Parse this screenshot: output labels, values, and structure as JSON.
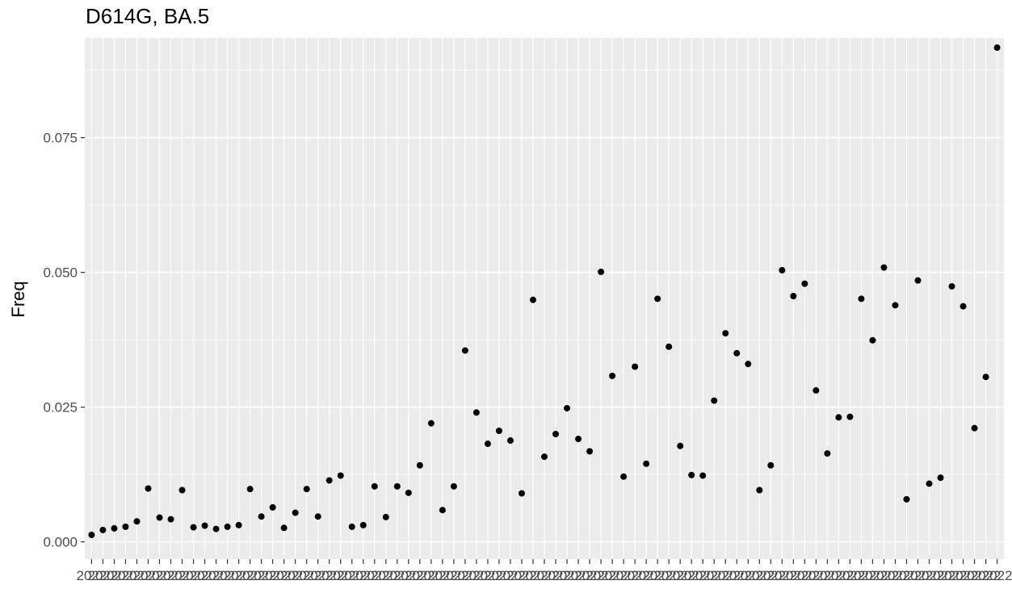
{
  "chart_data": {
    "type": "scatter",
    "title": "D614G, BA.5",
    "xlabel": "",
    "ylabel": "Freq",
    "x_tick_text": "2022",
    "ylim": [
      -0.0032,
      0.0935
    ],
    "y_ticks": [
      0.0,
      0.025,
      0.05,
      0.075
    ],
    "y_tick_labels": [
      "0.000",
      "0.025",
      "0.050",
      "0.075"
    ],
    "grid": true,
    "panel_background": "#ebebeb",
    "grid_color": "#ffffff",
    "point_color": "#000000",
    "values": [
      0.0013,
      0.0022,
      0.0025,
      0.0028,
      0.0038,
      0.0099,
      0.0045,
      0.0042,
      0.0096,
      0.0027,
      0.003,
      0.0024,
      0.0028,
      0.0031,
      0.0098,
      0.0047,
      0.0064,
      0.0026,
      0.0054,
      0.0098,
      0.0047,
      0.0114,
      0.0123,
      0.0028,
      0.0031,
      0.0103,
      0.0046,
      0.0103,
      0.0091,
      0.0142,
      0.022,
      0.0059,
      0.0103,
      0.0355,
      0.024,
      0.0182,
      0.0206,
      0.0188,
      0.009,
      0.0449,
      0.0158,
      0.02,
      0.0248,
      0.0191,
      0.0168,
      0.0501,
      0.0308,
      0.0121,
      0.0325,
      0.0145,
      0.0451,
      0.0362,
      0.0178,
      0.0124,
      0.0123,
      0.0262,
      0.0387,
      0.035,
      0.033,
      0.0096,
      0.0142,
      0.0504,
      0.0456,
      0.0479,
      0.0281,
      0.0164,
      0.0231,
      0.0232,
      0.0451,
      0.0374,
      0.0509,
      0.0439,
      0.0079,
      0.0485,
      0.0108,
      0.0119,
      0.0474,
      0.0437,
      0.0211,
      0.0306,
      0.0917
    ]
  }
}
